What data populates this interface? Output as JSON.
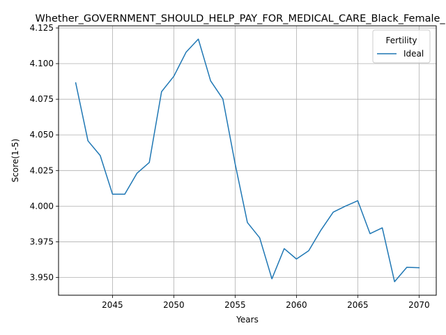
{
  "chart_data": {
    "type": "line",
    "title": "Whether_GOVERNMENT_SHOULD_HELP_PAY_FOR_MEDICAL_CARE_Black_Female_Bel",
    "xlabel": "Years",
    "ylabel": "Score(1-5)",
    "xlim": [
      2040.6,
      2071.4
    ],
    "ylim": [
      3.9375,
      4.1265
    ],
    "xticks": [
      2045,
      2050,
      2055,
      2060,
      2065,
      2070
    ],
    "yticks": [
      3.95,
      3.975,
      4.0,
      4.025,
      4.05,
      4.075,
      4.1,
      4.125
    ],
    "xtick_labels": [
      "2045",
      "2050",
      "2055",
      "2060",
      "2065",
      "2070"
    ],
    "ytick_labels": [
      "3.950",
      "3.975",
      "4.000",
      "4.025",
      "4.050",
      "4.075",
      "4.100",
      "4.125"
    ],
    "grid": true,
    "legend": {
      "title": "Fertility",
      "position": "top-right"
    },
    "series": [
      {
        "name": "Ideal",
        "color": "#1f77b4",
        "x": [
          2042,
          2043,
          2044,
          2045,
          2046,
          2047,
          2048,
          2049,
          2050,
          2051,
          2052,
          2053,
          2054,
          2055,
          2056,
          2057,
          2058,
          2059,
          2060,
          2061,
          2062,
          2063,
          2064,
          2065,
          2066,
          2067,
          2068,
          2069,
          2070
        ],
        "y": [
          4.0865,
          4.0458,
          4.0355,
          4.0084,
          4.0084,
          4.0231,
          4.0306,
          4.0803,
          4.0911,
          4.108,
          4.1172,
          4.0879,
          4.0752,
          4.0297,
          3.9885,
          3.9778,
          3.949,
          3.9702,
          3.9629,
          3.9687,
          3.9832,
          3.9958,
          4.0,
          4.0038,
          3.9807,
          3.9848,
          3.947,
          3.9571,
          3.9568
        ]
      }
    ]
  }
}
